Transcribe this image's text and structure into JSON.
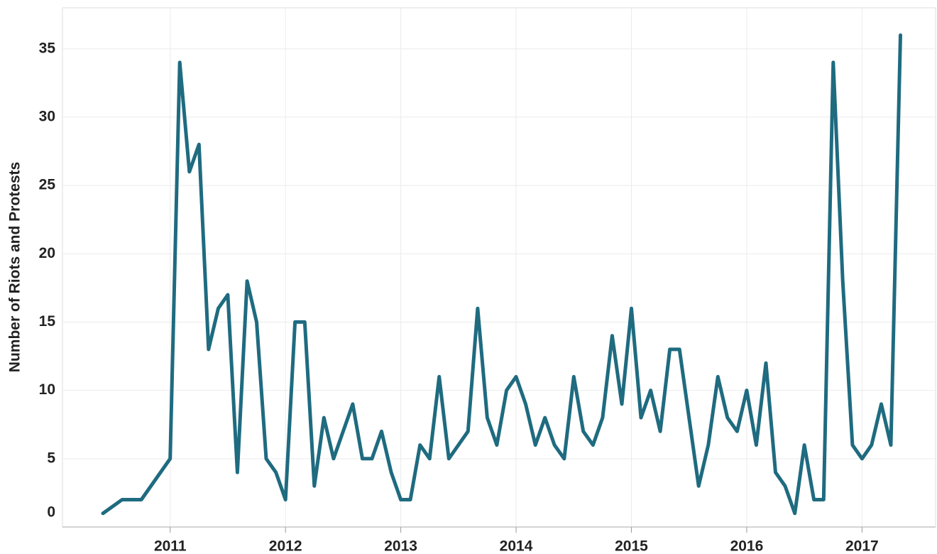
{
  "chart_data": {
    "type": "line",
    "ylabel": "Number of Riots and Protests",
    "x": [
      2010.417,
      2010.583,
      2010.75,
      2011,
      2011.083,
      2011.167,
      2011.25,
      2011.333,
      2011.417,
      2011.5,
      2011.583,
      2011.667,
      2011.75,
      2011.833,
      2011.917,
      2012,
      2012.083,
      2012.167,
      2012.25,
      2012.333,
      2012.417,
      2012.5,
      2012.583,
      2012.667,
      2012.75,
      2012.833,
      2012.917,
      2013,
      2013.083,
      2013.167,
      2013.25,
      2013.333,
      2013.417,
      2013.5,
      2013.583,
      2013.667,
      2013.75,
      2013.833,
      2013.917,
      2014,
      2014.083,
      2014.167,
      2014.25,
      2014.333,
      2014.417,
      2014.5,
      2014.583,
      2014.667,
      2014.75,
      2014.833,
      2014.917,
      2015,
      2015.083,
      2015.167,
      2015.25,
      2015.333,
      2015.417,
      2015.5,
      2015.583,
      2015.667,
      2015.75,
      2015.833,
      2015.917,
      2016,
      2016.083,
      2016.167,
      2016.25,
      2016.333,
      2016.417,
      2016.5,
      2016.583,
      2016.667,
      2016.75,
      2016.833,
      2016.917,
      2017,
      2017.083,
      2017.167,
      2017.25,
      2017.333
    ],
    "series": [
      {
        "name": "Riots and Protests",
        "color": "#1f6b80",
        "values": [
          1,
          2,
          2,
          5,
          34,
          26,
          28,
          13,
          16,
          17,
          4,
          18,
          15,
          5,
          4,
          2,
          15,
          15,
          3,
          8,
          5,
          7,
          9,
          5,
          5,
          7,
          4,
          2,
          2,
          6,
          5,
          11,
          5,
          6,
          7,
          16,
          8,
          6,
          10,
          11,
          9,
          6,
          8,
          6,
          5,
          11,
          7,
          6,
          8,
          14,
          9,
          16,
          8,
          10,
          7,
          13,
          13,
          8,
          3,
          6,
          11,
          8,
          7,
          10,
          6,
          12,
          4,
          3,
          1,
          6,
          2,
          2,
          34,
          18,
          6,
          5,
          6,
          9,
          6,
          36
        ]
      }
    ],
    "xlim": [
      2010.066,
      2017.638
    ],
    "xticks": [
      2011,
      2012,
      2013,
      2014,
      2015,
      2016,
      2017
    ],
    "ylim": [
      0,
      38
    ],
    "yticks": [
      0,
      5,
      10,
      15,
      20,
      25,
      30,
      35
    ],
    "grid": true
  }
}
